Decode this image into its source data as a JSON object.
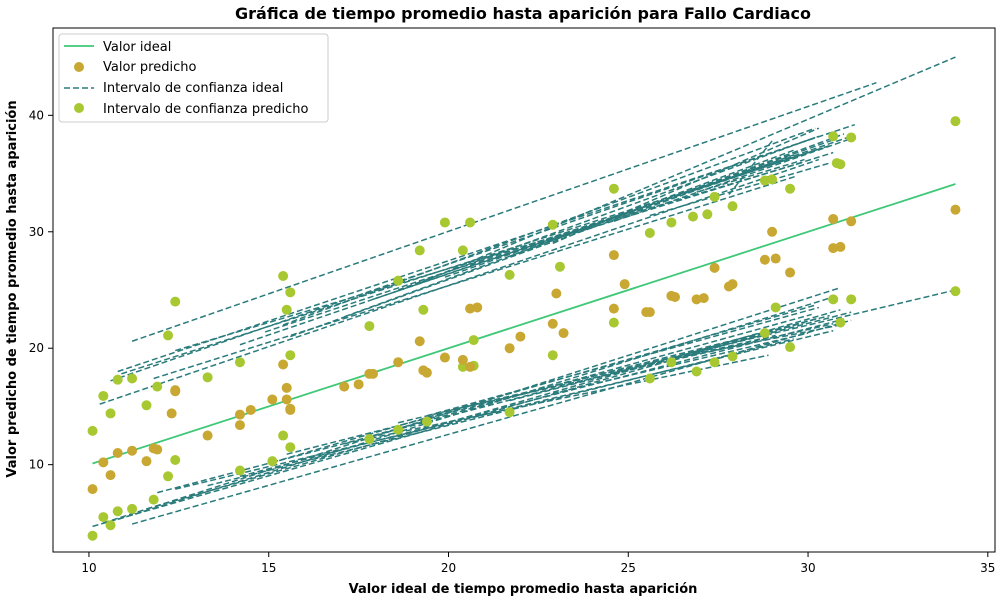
{
  "chart_data": {
    "type": "scatter",
    "title": "Gráfica de tiempo promedio hasta aparición para Fallo Cardiaco",
    "xlabel": "Valor ideal de tiempo promedio hasta aparición",
    "ylabel": "Valor predicho de tiempo promedio hasta aparición",
    "xlim": [
      9,
      35.2
    ],
    "ylim": [
      2.5,
      47.5
    ],
    "xticks": [
      10,
      15,
      20,
      25,
      30,
      35
    ],
    "yticks": [
      10,
      20,
      30,
      40
    ],
    "grid": false,
    "legend_position": "top-left",
    "colors": {
      "ideal_line": "#3fc878",
      "predicted": "#c8a832",
      "ci_ideal": "#2a7b7b",
      "ci_predicted": "#a8c832"
    },
    "series": [
      {
        "name": "Valor ideal",
        "kind": "line",
        "x": [
          10.1,
          34.1
        ],
        "y": [
          10.1,
          34.1
        ]
      },
      {
        "name": "Valor predicho",
        "kind": "scatter",
        "x": [
          10.1,
          10.4,
          10.6,
          10.8,
          11.2,
          11.6,
          11.8,
          11.9,
          12.3,
          12.4,
          12.4,
          13.3,
          14.2,
          14.2,
          14.5,
          15.1,
          15.4,
          15.5,
          15.5,
          15.6,
          15.6,
          17.1,
          17.5,
          17.8,
          17.9,
          18.6,
          19.2,
          19.3,
          19.4,
          19.9,
          20.4,
          20.6,
          20.6,
          20.8,
          21.7,
          22.0,
          22.9,
          23.0,
          23.2,
          24.6,
          24.6,
          24.9,
          25.5,
          25.6,
          26.2,
          26.3,
          26.9,
          27.1,
          27.4,
          27.8,
          27.9,
          28.8,
          29.0,
          29.1,
          29.5,
          30.7,
          30.7,
          30.9,
          31.2,
          34.1
        ],
        "y": [
          7.9,
          10.2,
          9.1,
          11.0,
          11.2,
          10.3,
          11.4,
          11.3,
          14.4,
          16.4,
          16.3,
          12.5,
          14.3,
          13.4,
          14.7,
          15.6,
          18.6,
          16.6,
          15.6,
          14.8,
          14.7,
          16.7,
          16.9,
          17.8,
          17.8,
          18.8,
          20.6,
          18.1,
          17.9,
          19.2,
          19.0,
          18.4,
          23.4,
          23.5,
          20.0,
          21.0,
          22.1,
          24.7,
          21.3,
          28.0,
          23.4,
          25.5,
          23.1,
          23.1,
          24.5,
          24.4,
          24.2,
          24.3,
          26.9,
          25.3,
          25.5,
          27.6,
          30.0,
          27.7,
          26.5,
          31.1,
          28.6,
          28.7,
          30.9,
          31.9
        ]
      },
      {
        "name": "Intervalo de confianza ideal",
        "kind": "dashed-lines",
        "segments": [
          [
            10.6,
            17.2,
            30.3,
            38.2
          ],
          [
            10.3,
            15.2,
            30.3,
            36.2
          ],
          [
            10.8,
            18.0,
            31.3,
            39.2
          ],
          [
            11.2,
            20.6,
            31.9,
            42.8
          ],
          [
            10.9,
            17.8,
            30.6,
            37.4
          ],
          [
            11.8,
            17.4,
            29.7,
            34.8
          ],
          [
            12.4,
            19.8,
            29.9,
            36.0
          ],
          [
            14.2,
            20.3,
            31.2,
            38.2
          ],
          [
            14.9,
            21.4,
            30.4,
            37.2
          ],
          [
            15.4,
            22.0,
            30.2,
            38.9
          ],
          [
            15.6,
            21.0,
            29.6,
            36.6
          ],
          [
            17.1,
            22.7,
            31.0,
            38.4
          ],
          [
            17.9,
            24.2,
            29.6,
            36.4
          ],
          [
            18.6,
            25.0,
            30.2,
            38.1
          ],
          [
            19.2,
            25.6,
            34.1,
            45.0
          ],
          [
            19.9,
            26.1,
            30.8,
            38.0
          ],
          [
            20.6,
            27.1,
            30.7,
            36.8
          ],
          [
            21.7,
            27.9,
            29.6,
            37.0
          ],
          [
            22.9,
            29.0,
            30.3,
            38.9
          ],
          [
            24.6,
            30.9,
            31.2,
            38.0
          ],
          [
            25.6,
            31.4,
            30.6,
            35.9
          ],
          [
            26.9,
            33.4,
            29.9,
            36.2
          ],
          [
            27.8,
            33.2,
            29.0,
            37.8
          ],
          [
            10.1,
            4.7,
            30.3,
            22.6
          ],
          [
            10.4,
            5.0,
            30.9,
            25.2
          ],
          [
            10.8,
            5.3,
            30.6,
            24.3
          ],
          [
            11.2,
            4.9,
            31.2,
            22.4
          ],
          [
            11.6,
            6.2,
            30.9,
            23.3
          ],
          [
            11.9,
            7.6,
            29.9,
            22.2
          ],
          [
            12.4,
            7.9,
            30.7,
            21.5
          ],
          [
            13.3,
            8.2,
            29.6,
            20.8
          ],
          [
            14.2,
            9.0,
            31.0,
            22.5
          ],
          [
            15.1,
            10.2,
            30.2,
            23.7
          ],
          [
            15.5,
            10.9,
            30.6,
            22.8
          ],
          [
            17.1,
            11.8,
            28.9,
            19.4
          ],
          [
            17.9,
            12.5,
            30.1,
            22.9
          ],
          [
            18.6,
            13.6,
            34.1,
            25.0
          ],
          [
            19.4,
            14.2,
            30.3,
            23.5
          ],
          [
            20.4,
            14.9,
            30.7,
            22.1
          ],
          [
            21.7,
            15.5,
            31.2,
            23.1
          ],
          [
            22.9,
            16.1,
            30.0,
            21.3
          ],
          [
            24.6,
            17.9,
            29.1,
            21.1
          ],
          [
            25.6,
            18.7,
            30.9,
            22.0
          ]
        ]
      },
      {
        "name": "Intervalo de confianza predicho",
        "kind": "scatter",
        "x": [
          10.1,
          10.4,
          10.6,
          10.8,
          11.2,
          11.6,
          11.9,
          12.2,
          12.4,
          13.3,
          14.2,
          15.4,
          15.5,
          15.6,
          15.6,
          17.8,
          18.6,
          19.2,
          19.3,
          19.9,
          20.4,
          20.6,
          20.7,
          21.7,
          22.9,
          23.1,
          24.6,
          25.6,
          26.2,
          26.8,
          27.2,
          27.4,
          27.9,
          28.8,
          29.0,
          29.5,
          30.7,
          30.8,
          30.9,
          31.2,
          34.1,
          10.1,
          10.4,
          10.6,
          10.8,
          11.2,
          11.8,
          12.2,
          12.4,
          14.2,
          15.1,
          15.4,
          15.6,
          17.8,
          18.6,
          19.4,
          20.4,
          20.7,
          21.7,
          22.9,
          24.6,
          25.6,
          26.2,
          26.9,
          27.4,
          27.9,
          28.8,
          29.1,
          29.5,
          30.7,
          30.9,
          31.2,
          34.1
        ],
        "y": [
          12.9,
          15.9,
          14.4,
          17.3,
          17.4,
          15.1,
          16.7,
          21.1,
          24.0,
          17.5,
          18.8,
          26.2,
          23.3,
          19.4,
          24.8,
          21.9,
          25.8,
          28.4,
          23.3,
          30.8,
          28.4,
          30.8,
          20.7,
          26.3,
          30.6,
          27.0,
          33.7,
          29.9,
          30.8,
          31.3,
          31.5,
          33.0,
          32.2,
          34.4,
          34.5,
          33.7,
          38.2,
          35.9,
          35.8,
          38.1,
          39.5,
          3.9,
          5.5,
          4.8,
          6.0,
          6.2,
          7.0,
          9.0,
          10.4,
          9.5,
          10.3,
          12.5,
          11.5,
          12.2,
          13.0,
          13.7,
          18.4,
          18.5,
          14.5,
          19.4,
          22.2,
          17.4,
          18.8,
          18.0,
          18.8,
          19.3,
          21.3,
          23.5,
          20.1,
          24.2,
          22.2,
          24.2,
          24.9
        ]
      }
    ]
  }
}
